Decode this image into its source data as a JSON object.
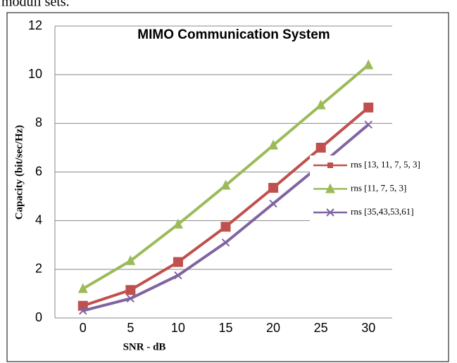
{
  "chart_data": {
    "type": "line",
    "title": "MIMO Communication System",
    "annotations": [
      "moduli sets."
    ],
    "x_label": "SNR - dB",
    "y_label": "Capacity (bit/sec/Hz)",
    "categories": [
      "0",
      "5",
      "10",
      "15",
      "20",
      "25",
      "30"
    ],
    "series": [
      {
        "name": "rns [13, 11, 7, 5, 3]",
        "color": "#c0504d",
        "marker": "square",
        "values": [
          0.5,
          1.15,
          2.3,
          3.75,
          5.35,
          7.0,
          8.65
        ]
      },
      {
        "name": "rns [11, 7, 5, 3]",
        "color": "#9bbb59",
        "marker": "triangle",
        "values": [
          1.2,
          2.35,
          3.85,
          5.45,
          7.1,
          8.75,
          10.4
        ]
      },
      {
        "name": "rns [35,43,53,61]",
        "color": "#8064a2",
        "marker": "x",
        "values": [
          0.3,
          0.8,
          1.75,
          3.1,
          4.7,
          6.3,
          7.95
        ]
      }
    ],
    "ylim": [
      0,
      12
    ],
    "yticks": [
      0,
      2,
      4,
      6,
      8,
      10,
      12
    ],
    "grid": true,
    "legend": "right"
  }
}
